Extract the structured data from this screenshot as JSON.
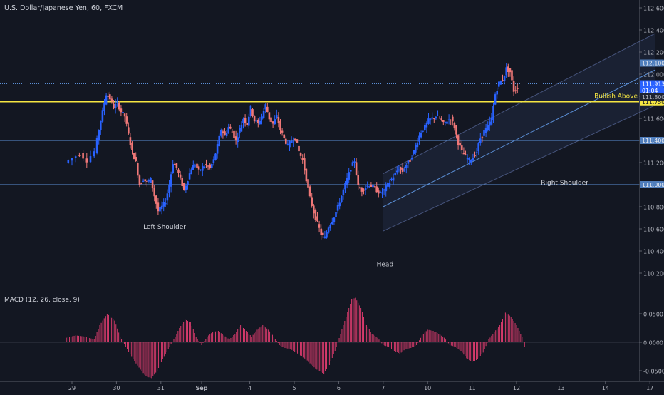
{
  "chart_data": {
    "type": "candlestick",
    "title": "U.S. Dollar/Japanese Yen, 60, FXCM",
    "y_axis": {
      "range": [
        109.9,
        112.7
      ],
      "ticks": [
        "112.600",
        "112.400",
        "112.200",
        "112.000",
        "111.800",
        "111.600",
        "111.400",
        "111.200",
        "111.000",
        "110.800",
        "110.600",
        "110.400",
        "110.200"
      ]
    },
    "x_axis": {
      "labels": [
        {
          "label": "29",
          "hour": -40
        },
        {
          "label": "30",
          "hour": -16
        },
        {
          "label": "31",
          "hour": 8
        },
        {
          "label": "Sep",
          "hour": 30
        },
        {
          "label": "4",
          "hour": 56
        },
        {
          "label": "5",
          "hour": 80
        },
        {
          "label": "6",
          "hour": 104
        },
        {
          "label": "7",
          "hour": 128
        },
        {
          "label": "10",
          "hour": 152
        },
        {
          "label": "11",
          "hour": 176
        },
        {
          "label": "12",
          "hour": 200
        },
        {
          "label": "13",
          "hour": 224
        },
        {
          "label": "14",
          "hour": 248
        },
        {
          "label": "17",
          "hour": 272
        }
      ]
    },
    "horizontal_levels": [
      {
        "price": 112.1,
        "label": "112.100",
        "style": "solid",
        "color": "#5b8fd6"
      },
      {
        "price": 111.913,
        "label": "111.913",
        "style": "dotted",
        "color": "#5b8fd6"
      },
      {
        "price": 111.75,
        "label": "111.750",
        "style": "solid",
        "color": "#f5e642"
      },
      {
        "price": 111.4,
        "label": "111.400",
        "style": "solid",
        "color": "#5b8fd6"
      },
      {
        "price": 111.0,
        "label": "111.000",
        "style": "solid",
        "color": "#5b8fd6"
      }
    ],
    "price_tags": [
      {
        "price": 111.913,
        "label": "111.913",
        "color": "#2962ff"
      },
      {
        "price": 111.85,
        "label": "01:04",
        "color": "#2962ff"
      },
      {
        "price": 111.8,
        "label": "111.800",
        "color": "#1e2433"
      }
    ],
    "annotations": [
      {
        "text": "Left Shoulder",
        "hour": 10,
        "price": 110.6
      },
      {
        "text": "Head",
        "hour": 129,
        "price": 110.26
      },
      {
        "text": "Right Shoulder",
        "hour": 226,
        "price": 111.0
      },
      {
        "text": "Bullish Above",
        "hour": 266,
        "price": 111.785
      }
    ],
    "channel": {
      "lower": [
        [
          128,
          110.58
        ],
        [
          275,
          111.72
        ]
      ],
      "upper": [
        [
          128,
          111.1
        ],
        [
          275,
          112.37
        ]
      ],
      "mid": [
        [
          128,
          110.8
        ],
        [
          275,
          112.04
        ]
      ]
    },
    "price_series": [
      {
        "hour": -43,
        "price": 111.2
      },
      {
        "hour": -39,
        "price": 111.24
      },
      {
        "hour": -35,
        "price": 111.28
      },
      {
        "hour": -31,
        "price": 111.22
      },
      {
        "hour": -27,
        "price": 111.3
      },
      {
        "hour": -25,
        "price": 111.5
      },
      {
        "hour": -23,
        "price": 111.66
      },
      {
        "hour": -21,
        "price": 111.82
      },
      {
        "hour": -19,
        "price": 111.78
      },
      {
        "hour": -17,
        "price": 111.7
      },
      {
        "hour": -15,
        "price": 111.74
      },
      {
        "hour": -13,
        "price": 111.66
      },
      {
        "hour": -11,
        "price": 111.62
      },
      {
        "hour": -9,
        "price": 111.45
      },
      {
        "hour": -7,
        "price": 111.3
      },
      {
        "hour": -5,
        "price": 111.2
      },
      {
        "hour": -3,
        "price": 111.0
      },
      {
        "hour": -1,
        "price": 111.05
      },
      {
        "hour": 1,
        "price": 111.02
      },
      {
        "hour": 3,
        "price": 111.05
      },
      {
        "hour": 5,
        "price": 110.9
      },
      {
        "hour": 7,
        "price": 110.76
      },
      {
        "hour": 9,
        "price": 110.8
      },
      {
        "hour": 11,
        "price": 110.85
      },
      {
        "hour": 13,
        "price": 111.0
      },
      {
        "hour": 15,
        "price": 111.2
      },
      {
        "hour": 17,
        "price": 111.15
      },
      {
        "hour": 19,
        "price": 111.05
      },
      {
        "hour": 21,
        "price": 110.95
      },
      {
        "hour": 23,
        "price": 111.05
      },
      {
        "hour": 25,
        "price": 111.15
      },
      {
        "hour": 27,
        "price": 111.18
      },
      {
        "hour": 29,
        "price": 111.12
      },
      {
        "hour": 31,
        "price": 111.16
      },
      {
        "hour": 33,
        "price": 111.18
      },
      {
        "hour": 35,
        "price": 111.15
      },
      {
        "hour": 37,
        "price": 111.22
      },
      {
        "hour": 39,
        "price": 111.35
      },
      {
        "hour": 41,
        "price": 111.5
      },
      {
        "hour": 43,
        "price": 111.44
      },
      {
        "hour": 45,
        "price": 111.52
      },
      {
        "hour": 47,
        "price": 111.48
      },
      {
        "hour": 49,
        "price": 111.4
      },
      {
        "hour": 51,
        "price": 111.5
      },
      {
        "hour": 53,
        "price": 111.6
      },
      {
        "hour": 55,
        "price": 111.55
      },
      {
        "hour": 57,
        "price": 111.7
      },
      {
        "hour": 59,
        "price": 111.58
      },
      {
        "hour": 61,
        "price": 111.55
      },
      {
        "hour": 63,
        "price": 111.62
      },
      {
        "hour": 65,
        "price": 111.72
      },
      {
        "hour": 67,
        "price": 111.6
      },
      {
        "hour": 69,
        "price": 111.55
      },
      {
        "hour": 71,
        "price": 111.62
      },
      {
        "hour": 73,
        "price": 111.5
      },
      {
        "hour": 75,
        "price": 111.42
      },
      {
        "hour": 77,
        "price": 111.35
      },
      {
        "hour": 79,
        "price": 111.4
      },
      {
        "hour": 81,
        "price": 111.42
      },
      {
        "hour": 83,
        "price": 111.3
      },
      {
        "hour": 85,
        "price": 111.22
      },
      {
        "hour": 87,
        "price": 111.05
      },
      {
        "hour": 89,
        "price": 110.88
      },
      {
        "hour": 91,
        "price": 110.75
      },
      {
        "hour": 93,
        "price": 110.65
      },
      {
        "hour": 95,
        "price": 110.55
      },
      {
        "hour": 97,
        "price": 110.52
      },
      {
        "hour": 99,
        "price": 110.62
      },
      {
        "hour": 101,
        "price": 110.68
      },
      {
        "hour": 103,
        "price": 110.75
      },
      {
        "hour": 105,
        "price": 110.85
      },
      {
        "hour": 107,
        "price": 110.95
      },
      {
        "hour": 109,
        "price": 111.05
      },
      {
        "hour": 111,
        "price": 111.15
      },
      {
        "hour": 113,
        "price": 111.22
      },
      {
        "hour": 115,
        "price": 110.98
      },
      {
        "hour": 117,
        "price": 110.95
      },
      {
        "hour": 119,
        "price": 110.98
      },
      {
        "hour": 121,
        "price": 111.0
      },
      {
        "hour": 123,
        "price": 110.98
      },
      {
        "hour": 125,
        "price": 110.95
      },
      {
        "hour": 127,
        "price": 110.92
      },
      {
        "hour": 129,
        "price": 110.95
      },
      {
        "hour": 131,
        "price": 111.0
      },
      {
        "hour": 133,
        "price": 111.05
      },
      {
        "hour": 135,
        "price": 111.1
      },
      {
        "hour": 137,
        "price": 111.15
      },
      {
        "hour": 139,
        "price": 111.12
      },
      {
        "hour": 141,
        "price": 111.18
      },
      {
        "hour": 143,
        "price": 111.22
      },
      {
        "hour": 145,
        "price": 111.3
      },
      {
        "hour": 147,
        "price": 111.4
      },
      {
        "hour": 149,
        "price": 111.48
      },
      {
        "hour": 151,
        "price": 111.52
      },
      {
        "hour": 153,
        "price": 111.58
      },
      {
        "hour": 155,
        "price": 111.6
      },
      {
        "hour": 157,
        "price": 111.62
      },
      {
        "hour": 159,
        "price": 111.6
      },
      {
        "hour": 161,
        "price": 111.55
      },
      {
        "hour": 163,
        "price": 111.58
      },
      {
        "hour": 165,
        "price": 111.6
      },
      {
        "hour": 167,
        "price": 111.52
      },
      {
        "hour": 169,
        "price": 111.38
      },
      {
        "hour": 171,
        "price": 111.3
      },
      {
        "hour": 173,
        "price": 111.25
      },
      {
        "hour": 175,
        "price": 111.22
      },
      {
        "hour": 177,
        "price": 111.25
      },
      {
        "hour": 179,
        "price": 111.3
      },
      {
        "hour": 181,
        "price": 111.42
      },
      {
        "hour": 183,
        "price": 111.48
      },
      {
        "hour": 185,
        "price": 111.52
      },
      {
        "hour": 187,
        "price": 111.6
      },
      {
        "hour": 189,
        "price": 111.82
      },
      {
        "hour": 191,
        "price": 111.92
      },
      {
        "hour": 193,
        "price": 111.95
      },
      {
        "hour": 195,
        "price": 112.05
      },
      {
        "hour": 197,
        "price": 112.02
      },
      {
        "hour": 199,
        "price": 111.85
      },
      {
        "hour": 201,
        "price": 111.88
      }
    ],
    "macd": {
      "title": "MACD (12, 26, close, 9)",
      "range": [
        -0.075,
        0.09
      ],
      "ticks": [
        "0.0500",
        "0.0000",
        "-0.0500"
      ],
      "histogram": [
        {
          "hour": -43,
          "value": 0.008
        },
        {
          "hour": -38,
          "value": 0.012
        },
        {
          "hour": -33,
          "value": 0.01
        },
        {
          "hour": -28,
          "value": 0.005
        },
        {
          "hour": -25,
          "value": 0.03
        },
        {
          "hour": -21,
          "value": 0.05
        },
        {
          "hour": -17,
          "value": 0.038
        },
        {
          "hour": -14,
          "value": 0.01
        },
        {
          "hour": -11,
          "value": -0.008
        },
        {
          "hour": -7,
          "value": -0.03
        },
        {
          "hour": -3,
          "value": -0.048
        },
        {
          "hour": 0,
          "value": -0.06
        },
        {
          "hour": 3,
          "value": -0.063
        },
        {
          "hour": 6,
          "value": -0.05
        },
        {
          "hour": 9,
          "value": -0.03
        },
        {
          "hour": 12,
          "value": -0.012
        },
        {
          "hour": 15,
          "value": 0.005
        },
        {
          "hour": 18,
          "value": 0.025
        },
        {
          "hour": 21,
          "value": 0.04
        },
        {
          "hour": 24,
          "value": 0.035
        },
        {
          "hour": 27,
          "value": 0.01
        },
        {
          "hour": 30,
          "value": -0.005
        },
        {
          "hour": 33,
          "value": 0.01
        },
        {
          "hour": 36,
          "value": 0.018
        },
        {
          "hour": 39,
          "value": 0.02
        },
        {
          "hour": 42,
          "value": 0.012
        },
        {
          "hour": 45,
          "value": 0.005
        },
        {
          "hour": 48,
          "value": 0.015
        },
        {
          "hour": 51,
          "value": 0.03
        },
        {
          "hour": 54,
          "value": 0.02
        },
        {
          "hour": 57,
          "value": 0.01
        },
        {
          "hour": 60,
          "value": 0.022
        },
        {
          "hour": 63,
          "value": 0.03
        },
        {
          "hour": 66,
          "value": 0.022
        },
        {
          "hour": 69,
          "value": 0.01
        },
        {
          "hour": 72,
          "value": -0.005
        },
        {
          "hour": 75,
          "value": -0.01
        },
        {
          "hour": 78,
          "value": -0.012
        },
        {
          "hour": 81,
          "value": -0.018
        },
        {
          "hour": 84,
          "value": -0.025
        },
        {
          "hour": 87,
          "value": -0.032
        },
        {
          "hour": 90,
          "value": -0.042
        },
        {
          "hour": 93,
          "value": -0.05
        },
        {
          "hour": 96,
          "value": -0.055
        },
        {
          "hour": 99,
          "value": -0.04
        },
        {
          "hour": 102,
          "value": -0.015
        },
        {
          "hour": 105,
          "value": 0.015
        },
        {
          "hour": 108,
          "value": 0.045
        },
        {
          "hour": 111,
          "value": 0.075
        },
        {
          "hour": 113,
          "value": 0.078
        },
        {
          "hour": 116,
          "value": 0.06
        },
        {
          "hour": 119,
          "value": 0.03
        },
        {
          "hour": 122,
          "value": 0.015
        },
        {
          "hour": 125,
          "value": 0.008
        },
        {
          "hour": 128,
          "value": -0.005
        },
        {
          "hour": 131,
          "value": -0.008
        },
        {
          "hour": 134,
          "value": -0.015
        },
        {
          "hour": 137,
          "value": -0.02
        },
        {
          "hour": 140,
          "value": -0.012
        },
        {
          "hour": 143,
          "value": -0.01
        },
        {
          "hour": 146,
          "value": -0.005
        },
        {
          "hour": 149,
          "value": 0.012
        },
        {
          "hour": 152,
          "value": 0.022
        },
        {
          "hour": 155,
          "value": 0.02
        },
        {
          "hour": 158,
          "value": 0.015
        },
        {
          "hour": 161,
          "value": 0.008
        },
        {
          "hour": 164,
          "value": -0.005
        },
        {
          "hour": 167,
          "value": -0.008
        },
        {
          "hour": 170,
          "value": -0.015
        },
        {
          "hour": 173,
          "value": -0.028
        },
        {
          "hour": 176,
          "value": -0.035
        },
        {
          "hour": 179,
          "value": -0.03
        },
        {
          "hour": 182,
          "value": -0.018
        },
        {
          "hour": 185,
          "value": 0.005
        },
        {
          "hour": 188,
          "value": 0.018
        },
        {
          "hour": 191,
          "value": 0.03
        },
        {
          "hour": 194,
          "value": 0.052
        },
        {
          "hour": 197,
          "value": 0.045
        },
        {
          "hour": 200,
          "value": 0.03
        },
        {
          "hour": 203,
          "value": 0.01
        },
        {
          "hour": 205,
          "value": -0.018
        }
      ]
    }
  }
}
